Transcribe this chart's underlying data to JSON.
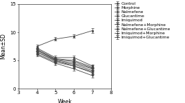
{
  "weeks": [
    4,
    5,
    6,
    7
  ],
  "series": [
    {
      "label": "Control",
      "means": [
        7.5,
        8.8,
        9.3,
        10.3
      ],
      "sds": [
        0.25,
        0.3,
        0.3,
        0.4
      ],
      "marker": "s",
      "color": "#444444",
      "linestyle": "-"
    },
    {
      "label": "Morphine",
      "means": [
        7.2,
        5.5,
        5.5,
        4.0
      ],
      "sds": [
        0.25,
        0.3,
        0.3,
        0.3
      ],
      "marker": "s",
      "color": "#444444",
      "linestyle": "-"
    },
    {
      "label": "Nalmefene",
      "means": [
        7.0,
        5.3,
        5.0,
        3.8
      ],
      "sds": [
        0.25,
        0.3,
        0.3,
        0.3
      ],
      "marker": "s",
      "color": "#444444",
      "linestyle": "-"
    },
    {
      "label": "Glucantime",
      "means": [
        6.8,
        5.1,
        4.5,
        3.5
      ],
      "sds": [
        0.25,
        0.3,
        0.3,
        0.3
      ],
      "marker": "s",
      "color": "#444444",
      "linestyle": "-"
    },
    {
      "label": "Imiquimod",
      "means": [
        6.5,
        5.0,
        4.0,
        3.0
      ],
      "sds": [
        0.25,
        0.3,
        0.3,
        0.3
      ],
      "marker": "s",
      "color": "#444444",
      "linestyle": "-"
    },
    {
      "label": "Nalmefene+Morphine",
      "means": [
        6.8,
        5.2,
        4.8,
        3.6
      ],
      "sds": [
        0.25,
        0.3,
        0.3,
        0.3
      ],
      "marker": "o",
      "color": "#444444",
      "linestyle": "-"
    },
    {
      "label": "Nalmefene+Glucantime",
      "means": [
        6.5,
        4.9,
        4.3,
        3.2
      ],
      "sds": [
        0.25,
        0.3,
        0.3,
        0.3
      ],
      "marker": "s",
      "color": "#444444",
      "linestyle": "-"
    },
    {
      "label": "Imiquimod+Morphine",
      "means": [
        6.2,
        4.7,
        4.0,
        2.8
      ],
      "sds": [
        0.25,
        0.3,
        0.3,
        0.3
      ],
      "marker": "^",
      "color": "#444444",
      "linestyle": "-"
    },
    {
      "label": "Imiquimod+Glucantime",
      "means": [
        6.0,
        4.5,
        3.5,
        2.3
      ],
      "sds": [
        0.25,
        0.3,
        0.3,
        0.3
      ],
      "marker": "v",
      "color": "#444444",
      "linestyle": "-"
    }
  ],
  "xlim": [
    3,
    8
  ],
  "ylim": [
    0,
    15
  ],
  "xticks": [
    3,
    4,
    5,
    6,
    7,
    8
  ],
  "yticks": [
    0,
    5,
    10,
    15
  ],
  "xlabel": "Week",
  "ylabel": "Mean±SD",
  "background_color": "#ffffff",
  "legend_fontsize": 4.2,
  "axis_fontsize": 5.5,
  "tick_fontsize": 5.0
}
